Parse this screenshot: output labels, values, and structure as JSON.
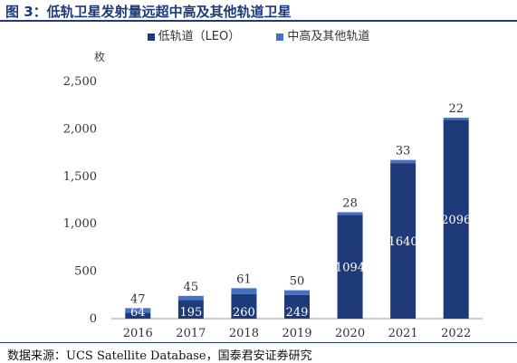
{
  "header": {
    "title": "图 3：低轨卫星发射量远超中高及其他轨道卫星"
  },
  "footer": {
    "source": "数据来源：UCS Satellite Database，国泰君安证券研究"
  },
  "colors": {
    "leo": "#1f3a78",
    "other": "#4472c4",
    "axis": "#999999",
    "text": "#333333"
  },
  "chart_data": {
    "type": "bar",
    "stacked": true,
    "title": "",
    "xlabel": "",
    "ylabel": "枚",
    "ylim": [
      0,
      2500
    ],
    "yticks": [
      0,
      500,
      1000,
      1500,
      2000,
      2500
    ],
    "ytick_labels": [
      "0",
      "500",
      "1,000",
      "1,500",
      "2,000",
      "2,500"
    ],
    "categories": [
      "2016",
      "2017",
      "2018",
      "2019",
      "2020",
      "2021",
      "2022"
    ],
    "series": [
      {
        "name": "低轨道（LEO）",
        "values": [
          64,
          195,
          260,
          249,
          1094,
          1640,
          2096
        ]
      },
      {
        "name": "中高及其他轨道",
        "values": [
          47,
          45,
          61,
          50,
          28,
          33,
          22
        ]
      }
    ],
    "grid": false,
    "legend_position": "top"
  }
}
